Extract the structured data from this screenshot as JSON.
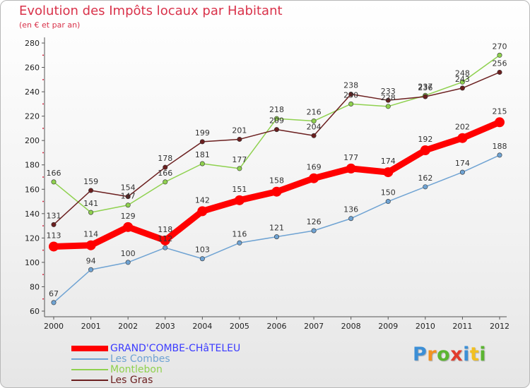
{
  "header": {
    "title": "Evolution des Impôts locaux par Habitant",
    "subtitle": "(en € et par an)"
  },
  "colors": {
    "title": "#d9324a",
    "grid": "#d9324a"
  },
  "chart_data": {
    "type": "line",
    "title": "Evolution des Impôts locaux par Habitant",
    "subtitle": "(en € et par an)",
    "x": [
      "2000",
      "2001",
      "2002",
      "2003",
      "2004",
      "2005",
      "2006",
      "2007",
      "2008",
      "2009",
      "2010",
      "2011",
      "2012"
    ],
    "ylim": [
      60,
      280
    ],
    "yticks": [
      60,
      80,
      100,
      120,
      140,
      160,
      180,
      200,
      220,
      240,
      260,
      280
    ],
    "grid": false,
    "legend_position": "bottom-left",
    "series": [
      {
        "name": "GRAND'COMBE-CHâTELEU",
        "color": "#ff0000",
        "emphasis": true,
        "values": [
          113,
          114,
          129,
          118,
          142,
          151,
          158,
          169,
          177,
          174,
          192,
          202,
          215
        ]
      },
      {
        "name": "Les Combes",
        "color": "#6fa3d3",
        "emphasis": false,
        "values": [
          67,
          94,
          100,
          112,
          103,
          116,
          121,
          126,
          136,
          150,
          162,
          174,
          188
        ]
      },
      {
        "name": "Montlebon",
        "color": "#8fd14f",
        "emphasis": false,
        "values": [
          166,
          141,
          147,
          166,
          181,
          177,
          218,
          216,
          230,
          228,
          237,
          248,
          270
        ]
      },
      {
        "name": "Les Gras",
        "color": "#6b1f1f",
        "emphasis": false,
        "values": [
          131,
          159,
          154,
          178,
          199,
          201,
          209,
          204,
          238,
          233,
          236,
          243,
          256
        ]
      }
    ]
  },
  "brand": {
    "letters": [
      "P",
      "r",
      "o",
      "x",
      "i",
      "t",
      "i"
    ],
    "colors": [
      "#3c8fd6",
      "#f29221",
      "#5bb531",
      "#e23c2c",
      "#3c8fd6",
      "#f2c021",
      "#5bb531"
    ]
  }
}
